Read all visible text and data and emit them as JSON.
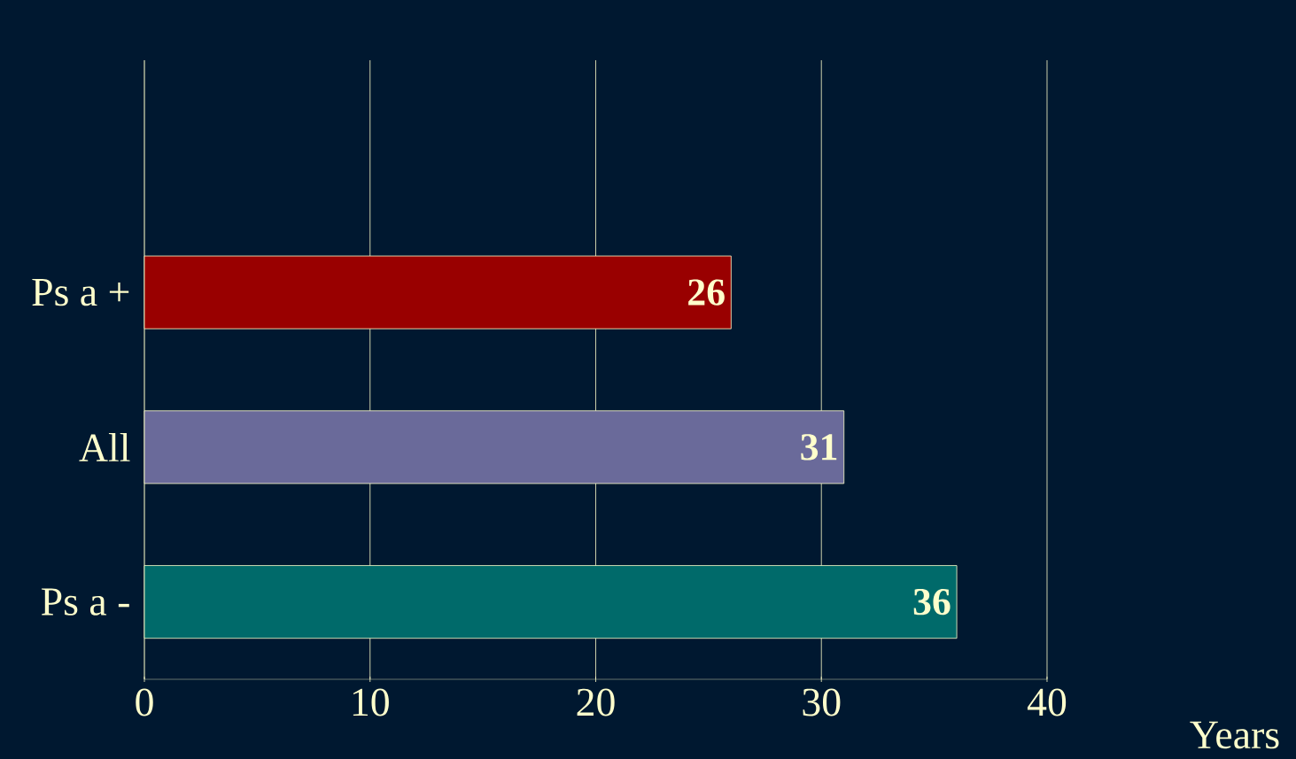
{
  "chart_data": {
    "type": "bar",
    "orientation": "horizontal",
    "categories": [
      "Ps a +",
      "All",
      "Ps a -"
    ],
    "values": [
      26,
      31,
      36
    ],
    "colors": [
      "#990000",
      "#6a6a9a",
      "#006a6a"
    ],
    "xlim": [
      0,
      40
    ],
    "xticks": [
      0,
      10,
      20,
      30,
      40
    ],
    "xlabel": "Years",
    "grid": "x",
    "data_labels": true
  }
}
